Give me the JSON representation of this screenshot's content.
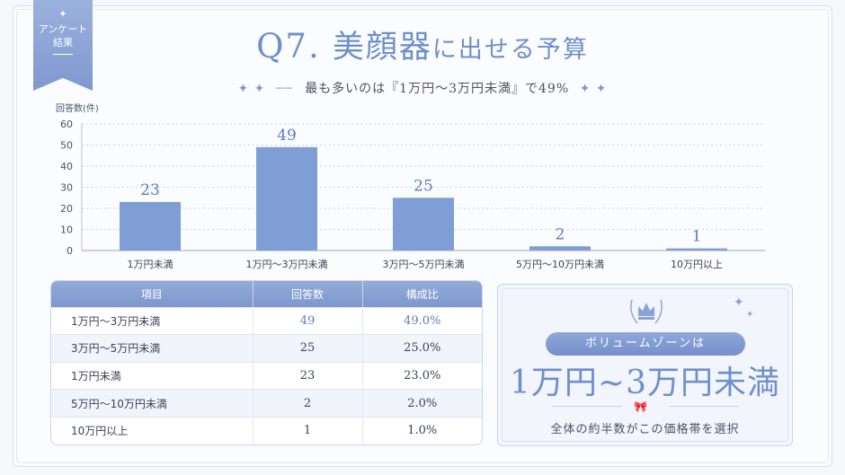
{
  "ribbon": {
    "line1": "アンケート",
    "line2": "結果"
  },
  "title": {
    "q": "Q7.",
    "main": "美顔器",
    "rest": "に出せる予算"
  },
  "subtitle": {
    "dash": "──",
    "text": "最も多いのは『1万円～3万円未満』で49%"
  },
  "chart_data": {
    "type": "bar",
    "ylabel": "回答数(件)",
    "ylim": [
      0,
      60
    ],
    "yticks": [
      0,
      10,
      20,
      30,
      40,
      50,
      60
    ],
    "categories": [
      "1万円未満",
      "1万円～3万円未満",
      "3万円～5万円未満",
      "5万円～10万円未満",
      "10万円以上"
    ],
    "values": [
      23,
      49,
      25,
      2,
      1
    ],
    "bar_color": "#7f9ed6",
    "grid": true
  },
  "table": {
    "headers": [
      "項目",
      "回答数",
      "構成比"
    ],
    "rows": [
      {
        "item": "1万円～3万円未満",
        "count": "49",
        "ratio": "49.0%"
      },
      {
        "item": "3万円～5万円未満",
        "count": "25",
        "ratio": "25.0%"
      },
      {
        "item": "1万円未満",
        "count": "23",
        "ratio": "23.0%"
      },
      {
        "item": "5万円～10万円未満",
        "count": "2",
        "ratio": "2.0%"
      },
      {
        "item": "10万円以上",
        "count": "1",
        "ratio": "1.0%"
      }
    ]
  },
  "card": {
    "pill": "ボリュームゾーンは",
    "zone": "1万円~3万円未満",
    "caption": "全体の約半数がこの価格帯を選択"
  },
  "colors": {
    "accent": "#6f8fcc",
    "bar": "#7f9ed6",
    "header": "#8aa3d6"
  }
}
